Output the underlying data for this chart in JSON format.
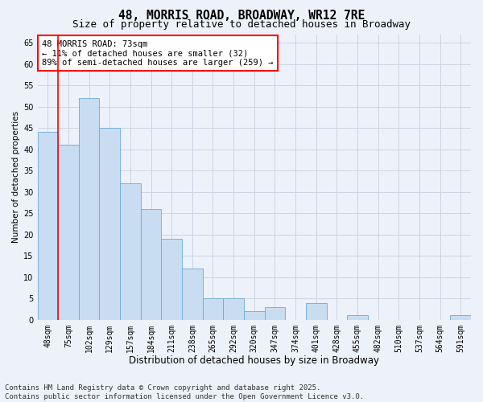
{
  "title": "48, MORRIS ROAD, BROADWAY, WR12 7RE",
  "subtitle": "Size of property relative to detached houses in Broadway",
  "xlabel": "Distribution of detached houses by size in Broadway",
  "ylabel": "Number of detached properties",
  "categories": [
    "48sqm",
    "75sqm",
    "102sqm",
    "129sqm",
    "157sqm",
    "184sqm",
    "211sqm",
    "238sqm",
    "265sqm",
    "292sqm",
    "320sqm",
    "347sqm",
    "374sqm",
    "401sqm",
    "428sqm",
    "455sqm",
    "482sqm",
    "510sqm",
    "537sqm",
    "564sqm",
    "591sqm"
  ],
  "values": [
    44,
    41,
    52,
    45,
    32,
    26,
    19,
    12,
    5,
    5,
    2,
    3,
    0,
    4,
    0,
    1,
    0,
    0,
    0,
    0,
    1
  ],
  "bar_color": "#c9ddf2",
  "bar_edge_color": "#6aaad4",
  "annotation_text": "48 MORRIS ROAD: 73sqm\n← 11% of detached houses are smaller (32)\n89% of semi-detached houses are larger (259) →",
  "annotation_box_color": "white",
  "annotation_box_edge_color": "red",
  "ylim": [
    0,
    67
  ],
  "yticks": [
    0,
    5,
    10,
    15,
    20,
    25,
    30,
    35,
    40,
    45,
    50,
    55,
    60,
    65
  ],
  "grid_color": "#ccd5e3",
  "background_color": "#edf1f9",
  "footer_line1": "Contains HM Land Registry data © Crown copyright and database right 2025.",
  "footer_line2": "Contains public sector information licensed under the Open Government Licence v3.0.",
  "title_fontsize": 10.5,
  "subtitle_fontsize": 9,
  "xlabel_fontsize": 8.5,
  "ylabel_fontsize": 7.5,
  "tick_fontsize": 7,
  "footer_fontsize": 6.5,
  "annot_fontsize": 7.5
}
